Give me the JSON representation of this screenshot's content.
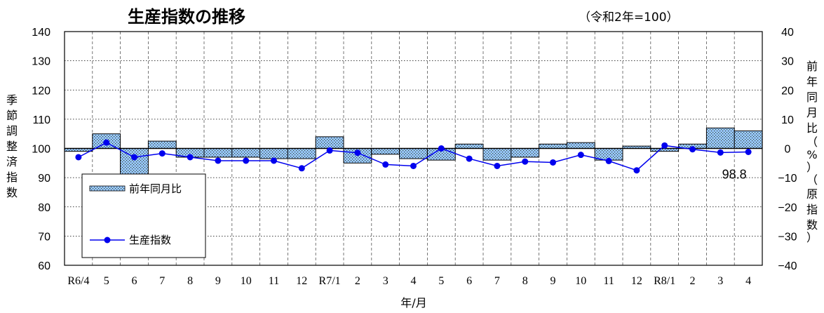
{
  "chart_data": {
    "type": "bar+line",
    "title": "生産指数の推移",
    "subtitle": "（令和2年=100）",
    "xlabel": "年/月",
    "ylabel_left": [
      "季",
      "節",
      "調",
      "整",
      "済",
      "指",
      "数"
    ],
    "ylabel_right": [
      "前",
      "年",
      "同",
      "月",
      "比",
      "（",
      "%",
      "）",
      "（",
      "原",
      "指",
      "数",
      "）"
    ],
    "categories": [
      "R6/4",
      "5",
      "6",
      "7",
      "8",
      "9",
      "10",
      "11",
      "12",
      "R7/1",
      "2",
      "3",
      "4",
      "5",
      "6",
      "7",
      "8",
      "9",
      "10",
      "11",
      "12",
      "R8/1",
      "2",
      "3",
      "4"
    ],
    "ylim_left": [
      60,
      140
    ],
    "ylim_right": [
      -40,
      40
    ],
    "yticks_left": [
      "140",
      "130",
      "120",
      "110",
      "100",
      "90",
      "80",
      "70",
      "60"
    ],
    "yticks_right": [
      "40",
      "30",
      "20",
      "10",
      "0",
      "−10",
      "−20",
      "−30",
      "−40"
    ],
    "grid": true,
    "legend_position": "bottom-left",
    "series": [
      {
        "name": "前年同月比",
        "kind": "bar",
        "axis": "right",
        "color": "#99ccff",
        "values": [
          -1.0,
          5.0,
          -9.5,
          2.5,
          -3.0,
          -3.0,
          -3.0,
          -3.5,
          -3.5,
          4.0,
          -5.0,
          -2.0,
          -3.5,
          -4.0,
          1.5,
          -4.0,
          -3.0,
          1.5,
          2.0,
          -4.0,
          0.8,
          -1.0,
          1.5,
          7.0,
          6.0
        ]
      },
      {
        "name": "生産指数",
        "kind": "line",
        "axis": "left",
        "color": "#0000ee",
        "values": [
          97.0,
          102.0,
          97.0,
          98.3,
          97.0,
          95.8,
          95.8,
          95.8,
          93.2,
          99.3,
          98.5,
          94.5,
          94.0,
          100.0,
          96.5,
          94.0,
          95.5,
          95.2,
          97.8,
          95.7,
          92.5,
          101.0,
          99.7,
          98.6,
          98.8
        ]
      }
    ],
    "annotations": [
      {
        "text": "98.8",
        "at_category": "4"
      }
    ]
  }
}
